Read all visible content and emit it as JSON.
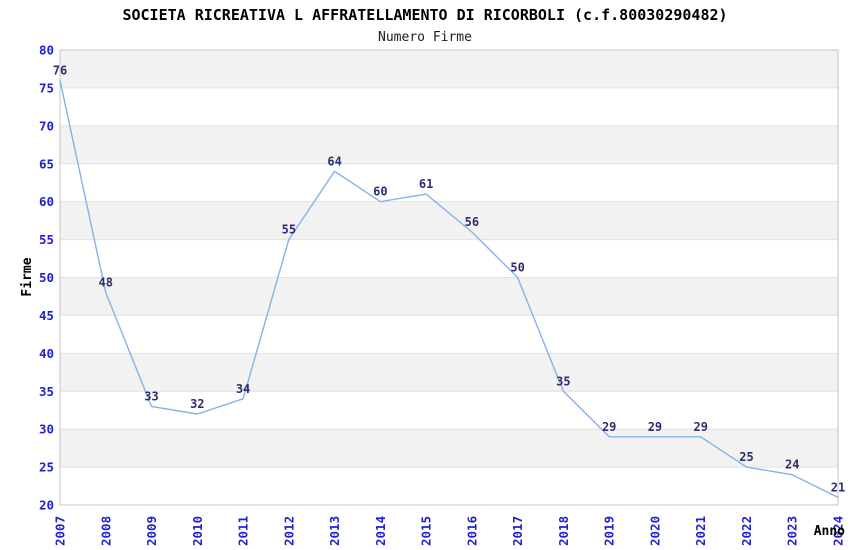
{
  "chart_data": {
    "type": "line",
    "title": "SOCIETA RICREATIVA L AFFRATELLAMENTO DI RICORBOLI (c.f.80030290482)",
    "subtitle": "Numero Firme",
    "xlabel": "Anno",
    "ylabel": "Firme",
    "categories": [
      "2007",
      "2008",
      "2009",
      "2010",
      "2011",
      "2012",
      "2013",
      "2014",
      "2015",
      "2016",
      "2017",
      "2018",
      "2019",
      "2020",
      "2021",
      "2022",
      "2023",
      "2024"
    ],
    "values": [
      76,
      48,
      33,
      32,
      34,
      55,
      64,
      60,
      61,
      56,
      50,
      35,
      29,
      29,
      29,
      25,
      24,
      21
    ],
    "ylim": [
      20,
      80
    ],
    "ytick_step": 5,
    "grid": true,
    "band_pattern": "alternating",
    "legend": "none",
    "colors": {
      "line": "#85b3e8",
      "point_label": "#2e2e6e",
      "tick_label": "#2222cc",
      "band": "#f2f2f2",
      "gridline": "#e2e2e2",
      "plot_border": "#c6c6c6",
      "title": "#000000"
    }
  }
}
